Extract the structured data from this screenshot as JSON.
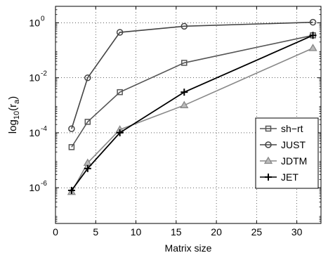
{
  "chart_data": {
    "type": "line",
    "xlabel": "Matrix size",
    "ylabel": "log",
    "ylabel_sub": "10",
    "ylabel_rest": "(r",
    "ylabel_sub2": "a",
    "ylabel_end": ")",
    "xlim": [
      0,
      33
    ],
    "ylim_exp": [
      -7.3,
      0.6
    ],
    "y_scale": "log",
    "grid": true,
    "legend_position": "bottom-right",
    "x_ticks": [
      0,
      5,
      10,
      15,
      20,
      25,
      30
    ],
    "y_ticks": [
      {
        "base": "10",
        "exp": "0",
        "value": 1
      },
      {
        "base": "10",
        "exp": "-2",
        "value": 0.01
      },
      {
        "base": "10",
        "exp": "-4",
        "value": 0.0001
      },
      {
        "base": "10",
        "exp": "-6",
        "value": 1e-06
      }
    ],
    "series": [
      {
        "name": "sh−rt",
        "color": "#555555",
        "marker": "square",
        "x": [
          2,
          4,
          8,
          16,
          32
        ],
        "y": [
          3e-05,
          0.00025,
          0.003,
          0.035,
          0.35
        ]
      },
      {
        "name": "JUST",
        "color": "#444444",
        "marker": "circle",
        "x": [
          2,
          4,
          8,
          16,
          32
        ],
        "y": [
          0.00014,
          0.01,
          0.45,
          0.75,
          1.05
        ]
      },
      {
        "name": "JDTM",
        "color": "#888888",
        "marker": "triangle",
        "x": [
          2,
          4,
          8,
          16,
          32
        ],
        "y": [
          7e-07,
          8e-06,
          0.00013,
          0.001,
          0.12
        ]
      },
      {
        "name": "JET",
        "color": "#000000",
        "marker": "plus",
        "x": [
          2,
          4,
          8,
          16,
          32
        ],
        "y": [
          8e-07,
          5e-06,
          0.0001,
          0.003,
          0.35
        ]
      }
    ]
  }
}
